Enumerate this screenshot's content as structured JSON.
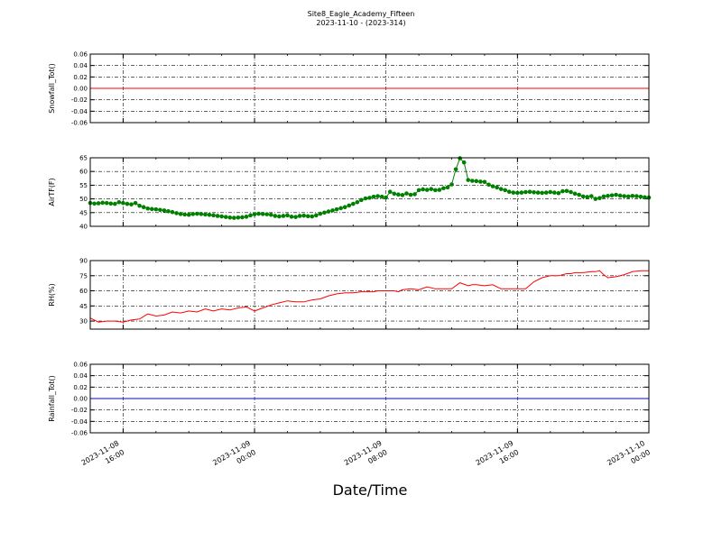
{
  "figure": {
    "title_line1": "Site8_Eagle_Academy_Fifteen",
    "title_line2": "2023-11-10 - (2023-314)",
    "xlabel": "Date/Time",
    "x_ticks": [
      {
        "t": 0,
        "line1": "2023-11-08",
        "line2": "16:00"
      },
      {
        "t": 8,
        "line1": "2023-11-09",
        "line2": "00:00"
      },
      {
        "t": 16,
        "line1": "2023-11-09",
        "line2": "08:00"
      },
      {
        "t": 24,
        "line1": "2023-11-09",
        "line2": "16:00"
      },
      {
        "t": 32,
        "line1": "2023-11-10",
        "line2": "00:00"
      }
    ],
    "x_range_hours": [
      -2,
      32
    ]
  },
  "chart_data": [
    {
      "type": "line",
      "ylabel": "Snowfall_Tot()",
      "ylim": [
        -0.06,
        0.06
      ],
      "yticks": [
        "0.06",
        "0.04",
        "0.02",
        "0.00",
        "-0.02",
        "-0.04",
        "-0.06"
      ],
      "ytick_values": [
        0.06,
        0.04,
        0.02,
        0.0,
        -0.02,
        -0.04,
        -0.06
      ],
      "color": "#ff0000",
      "markers": false,
      "grid": true,
      "x": [
        -2,
        32
      ],
      "y": [
        0.0,
        0.0
      ]
    },
    {
      "type": "line",
      "ylabel": "AirTF(F)",
      "ylim": [
        40,
        65
      ],
      "yticks": [
        "65",
        "60",
        "55",
        "50",
        "45",
        "40"
      ],
      "ytick_values": [
        65,
        60,
        55,
        50,
        45,
        40
      ],
      "color": "#008000",
      "markers": true,
      "grid": true,
      "x": [
        -2,
        -1.75,
        -1.5,
        -1.25,
        -1,
        -0.75,
        -0.5,
        -0.25,
        0,
        0.25,
        0.5,
        0.75,
        1,
        1.25,
        1.5,
        1.75,
        2,
        2.25,
        2.5,
        2.75,
        3,
        3.25,
        3.5,
        3.75,
        4,
        4.25,
        4.5,
        4.75,
        5,
        5.25,
        5.5,
        5.75,
        6,
        6.25,
        6.5,
        6.75,
        7,
        7.25,
        7.5,
        7.75,
        8,
        8.25,
        8.5,
        8.75,
        9,
        9.25,
        9.5,
        9.75,
        10,
        10.25,
        10.5,
        10.75,
        11,
        11.25,
        11.5,
        11.75,
        12,
        12.25,
        12.5,
        12.75,
        13,
        13.25,
        13.5,
        13.75,
        14,
        14.25,
        14.5,
        14.75,
        15,
        15.25,
        15.5,
        15.75,
        16,
        16.25,
        16.5,
        16.75,
        17,
        17.25,
        17.5,
        17.75,
        18,
        18.25,
        18.5,
        18.75,
        19,
        19.25,
        19.5,
        19.75,
        20,
        20.25,
        20.5,
        20.75,
        21,
        21.25,
        21.5,
        21.75,
        22,
        22.25,
        22.5,
        22.75,
        23,
        23.25,
        23.5,
        23.75,
        24,
        24.25,
        24.5,
        24.75,
        25,
        25.25,
        25.5,
        25.75,
        26,
        26.25,
        26.5,
        26.75,
        27,
        27.25,
        27.5,
        27.75,
        28,
        28.25,
        28.5,
        28.75,
        29,
        29.25,
        29.5,
        29.75,
        30,
        30.25,
        30.5,
        30.75,
        31,
        31.25,
        31.5,
        31.75,
        32
      ],
      "y": [
        48.5,
        48.3,
        48.4,
        48.6,
        48.5,
        48.3,
        48.2,
        48.8,
        48.5,
        48.2,
        48.0,
        48.5,
        47.5,
        47.0,
        46.5,
        46.3,
        46.2,
        46.0,
        45.8,
        45.5,
        45.2,
        44.8,
        44.5,
        44.3,
        44.2,
        44.5,
        44.6,
        44.5,
        44.3,
        44.2,
        44.0,
        43.8,
        43.6,
        43.4,
        43.2,
        43.1,
        43.2,
        43.3,
        43.5,
        44.0,
        44.4,
        44.6,
        44.5,
        44.4,
        44.2,
        43.8,
        43.6,
        43.8,
        44.0,
        43.5,
        43.4,
        43.8,
        43.9,
        43.7,
        43.6,
        44.0,
        44.6,
        45.0,
        45.4,
        45.8,
        46.2,
        46.6,
        47.0,
        47.6,
        48.2,
        48.8,
        49.6,
        50.2,
        50.4,
        50.8,
        51.0,
        50.8,
        50.5,
        52.6,
        51.9,
        51.6,
        51.4,
        52.0,
        51.5,
        51.7,
        53.2,
        53.5,
        53.3,
        53.6,
        53.2,
        53.3,
        53.9,
        54.2,
        55.3,
        60.8,
        64.8,
        63.3,
        56.9,
        56.6,
        56.5,
        56.3,
        56.2,
        55.2,
        54.6,
        54.2,
        53.6,
        53.2,
        52.6,
        52.3,
        52.2,
        52.3,
        52.5,
        52.6,
        52.4,
        52.3,
        52.2,
        52.3,
        52.5,
        52.3,
        52.1,
        52.8,
        52.9,
        52.5,
        51.9,
        51.5,
        50.9,
        50.7,
        51.0,
        50.0,
        50.3,
        50.9,
        51.1,
        51.3,
        51.5,
        51.2,
        51.0,
        50.9,
        51.1,
        51.0,
        50.8,
        50.6,
        50.5
      ]
    },
    {
      "type": "line",
      "ylabel": "RH(%)",
      "ylim": [
        22,
        90
      ],
      "yticks": [
        "90",
        "75",
        "60",
        "45",
        "30"
      ],
      "ytick_values": [
        90,
        75,
        60,
        45,
        30
      ],
      "color": "#ff0000",
      "markers": false,
      "grid": true,
      "x": [
        -2,
        -1.5,
        -1,
        -0.5,
        0,
        0.5,
        1,
        1.5,
        2,
        2.5,
        3,
        3.5,
        4,
        4.5,
        5,
        5.5,
        6,
        6.5,
        7,
        7.5,
        8,
        8.5,
        9,
        9.5,
        10,
        10.5,
        11,
        11.5,
        12,
        12.5,
        13,
        13.5,
        14,
        14.5,
        15,
        15.25,
        15.5,
        15.75,
        16,
        16.25,
        16.5,
        16.75,
        17,
        17.5,
        18,
        18.5,
        19,
        19.25,
        19.5,
        20,
        20.5,
        21,
        21.25,
        21.5,
        22,
        22.5,
        23,
        23.5,
        24,
        24.5,
        25,
        25.5,
        26,
        26.5,
        27,
        27.25,
        27.5,
        28,
        28.5,
        28.75,
        29,
        29.25,
        29.5,
        30,
        30.5,
        31,
        31.5,
        32
      ],
      "y": [
        33,
        29,
        30,
        30,
        29,
        31,
        32,
        37,
        35,
        36,
        39,
        38,
        40,
        39,
        42,
        40,
        42,
        41,
        43,
        44,
        40,
        43,
        46,
        48,
        50,
        49,
        49,
        51,
        52,
        55,
        57,
        58,
        58,
        59,
        59,
        59,
        60,
        60,
        60,
        60,
        60,
        59,
        61,
        62,
        61,
        64,
        62,
        62,
        62,
        62,
        68,
        65,
        66,
        66,
        65,
        66,
        62,
        62,
        62,
        62,
        69,
        73,
        75,
        75,
        77,
        77,
        78,
        78,
        79,
        79,
        80,
        76,
        73,
        74,
        76,
        79,
        80,
        80
      ]
    },
    {
      "type": "line",
      "ylabel": "Rainfall_Tot()",
      "ylim": [
        -0.06,
        0.06
      ],
      "yticks": [
        "0.06",
        "0.04",
        "0.02",
        "0.00",
        "-0.02",
        "-0.04",
        "-0.06"
      ],
      "ytick_values": [
        0.06,
        0.04,
        0.02,
        0.0,
        -0.02,
        -0.04,
        -0.06
      ],
      "color": "#0000ff",
      "markers": false,
      "grid": true,
      "x": [
        -2,
        32
      ],
      "y": [
        0.0,
        0.0
      ]
    }
  ]
}
